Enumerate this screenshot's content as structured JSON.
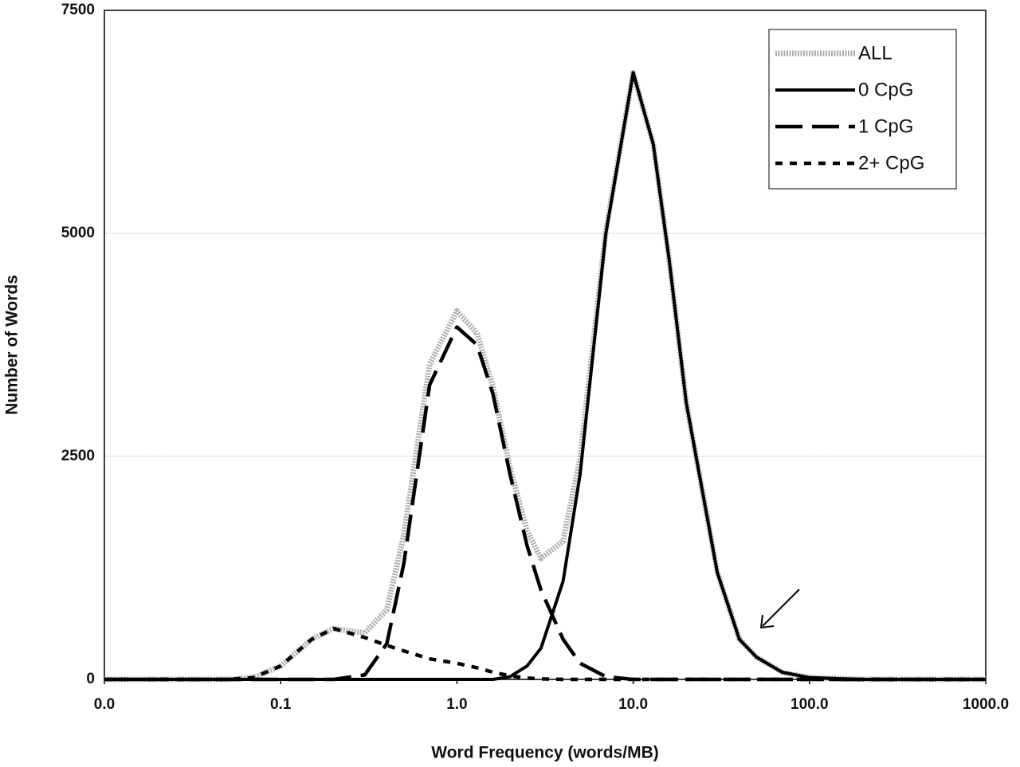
{
  "chart_data": {
    "type": "line",
    "x_label": "Word Frequency (words/MB)",
    "y_label": "Number of Words",
    "x": [
      0.01,
      0.03,
      0.05,
      0.07,
      0.1,
      0.15,
      0.2,
      0.3,
      0.4,
      0.5,
      0.7,
      1,
      1.3,
      1.6,
      2,
      2.5,
      3,
      4,
      5,
      7,
      10,
      13,
      16,
      20,
      30,
      40,
      50,
      70,
      100,
      200,
      1000
    ],
    "series": [
      {
        "name": "ALL",
        "color": "#b0b0b0",
        "line_style": "dotted",
        "values": [
          0,
          0,
          0,
          20,
          150,
          450,
          570,
          520,
          780,
          1620,
          3530,
          4130,
          3880,
          3280,
          2370,
          1665,
          1355,
          1550,
          2480,
          5030,
          6800,
          6000,
          4700,
          3100,
          1200,
          450,
          250,
          80,
          20,
          0,
          0
        ]
      },
      {
        "name": "0 CpG",
        "color": "#000000",
        "line_style": "solid",
        "values": [
          0,
          0,
          0,
          0,
          0,
          0,
          0,
          0,
          0,
          0,
          0,
          0,
          0,
          0,
          30,
          150,
          350,
          1100,
          2300,
          5000,
          6800,
          6000,
          4700,
          3100,
          1200,
          450,
          250,
          80,
          20,
          0,
          0
        ]
      },
      {
        "name": "1 CpG",
        "color": "#000000",
        "line_style": "long-dash",
        "values": [
          0,
          0,
          0,
          0,
          0,
          0,
          0,
          50,
          400,
          1300,
          3300,
          3950,
          3750,
          3200,
          2300,
          1500,
          1000,
          450,
          180,
          30,
          0,
          0,
          0,
          0,
          0,
          0,
          0,
          0,
          0,
          0,
          0
        ]
      },
      {
        "name": "2+ CpG",
        "color": "#000000",
        "line_style": "short-dash",
        "values": [
          0,
          0,
          0,
          20,
          150,
          450,
          570,
          470,
          380,
          320,
          230,
          180,
          130,
          80,
          40,
          15,
          5,
          0,
          0,
          0,
          0,
          0,
          0,
          0,
          0,
          0,
          0,
          0,
          0,
          0,
          0
        ]
      }
    ],
    "x_scale": "log",
    "xlim": [
      0.01,
      1000
    ],
    "xticks": [
      {
        "value": 0.01,
        "label": "0.0"
      },
      {
        "value": 0.1,
        "label": "0.1"
      },
      {
        "value": 1,
        "label": "1.0"
      },
      {
        "value": 10,
        "label": "10.0"
      },
      {
        "value": 100,
        "label": "100.0"
      },
      {
        "value": 1000,
        "label": "1000.0"
      }
    ],
    "ylim": [
      0,
      7500
    ],
    "yticks": [
      0,
      2500,
      5000,
      7500
    ],
    "grid": true,
    "legend": "top-right"
  }
}
